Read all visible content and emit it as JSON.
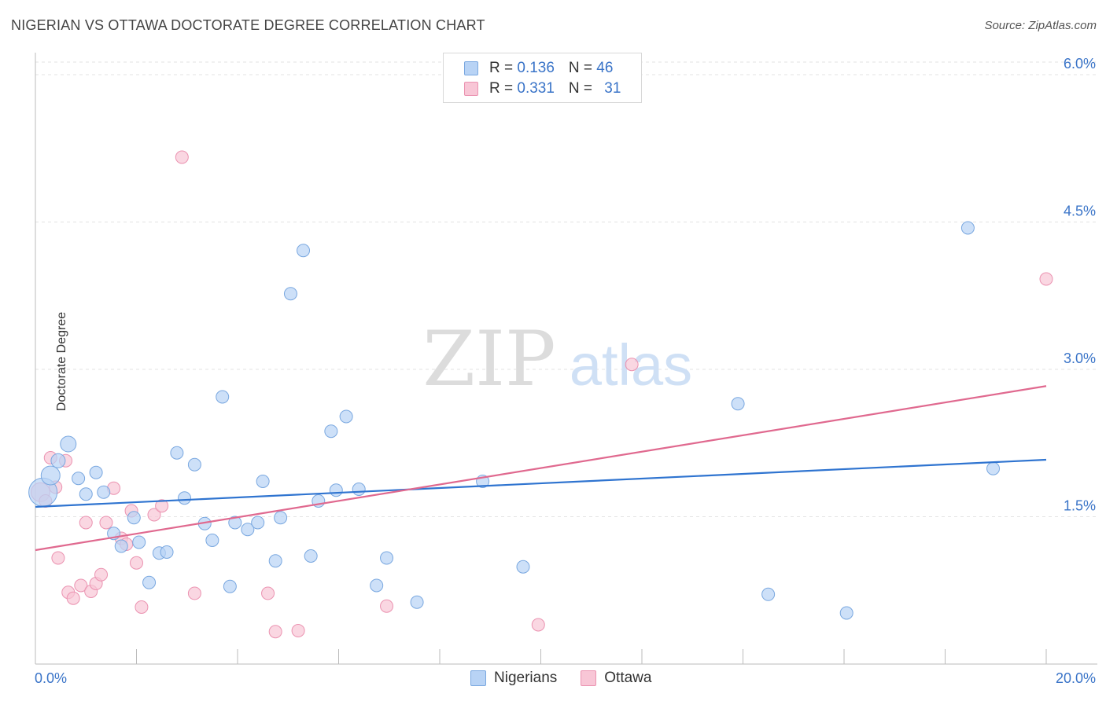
{
  "title": "NIGERIAN VS OTTAWA DOCTORATE DEGREE CORRELATION CHART",
  "source": "Source: ZipAtlas.com",
  "watermark": {
    "zip": "ZIP",
    "atlas": "atlas"
  },
  "legend": {
    "nigerians": {
      "r_label": "R = ",
      "r": "0.136",
      "n_label": "N = ",
      "n": "46"
    },
    "ottawa": {
      "r_label": "R = ",
      "r": "0.331",
      "n_label": "N = ",
      "n": "31"
    }
  },
  "colors": {
    "nigerians_fill": "#b8d3f5",
    "nigerians_edge": "#7aa8e0",
    "nigerians_line": "#2f74d0",
    "ottawa_fill": "#f8c6d6",
    "ottawa_edge": "#eb93b1",
    "ottawa_line": "#e0698f",
    "tick_label": "#3a74c8"
  },
  "chart_data": {
    "type": "scatter",
    "title": "NIGERIAN VS OTTAWA DOCTORATE DEGREE CORRELATION CHART",
    "xlabel": "",
    "ylabel": "Doctorate Degree",
    "xlim": [
      0,
      20
    ],
    "ylim": [
      0,
      6.2
    ],
    "x_tick_labels": [
      "0.0%",
      "20.0%"
    ],
    "y_ticks": [
      1.5,
      3.0,
      4.5,
      6.0
    ],
    "y_tick_labels": [
      "1.5%",
      "3.0%",
      "4.5%",
      "6.0%"
    ],
    "grid": true,
    "legend_position": "top-center",
    "series": [
      {
        "name": "Nigerians",
        "r": 0.136,
        "n": 46,
        "trend": [
          [
            0,
            1.6
          ],
          [
            20,
            2.08
          ]
        ],
        "points": [
          [
            0.15,
            1.75,
            18
          ],
          [
            0.3,
            1.92,
            12
          ],
          [
            0.45,
            2.07,
            9
          ],
          [
            0.65,
            2.24,
            10
          ],
          [
            0.85,
            1.89,
            8
          ],
          [
            1.0,
            1.73,
            8
          ],
          [
            1.2,
            1.95,
            8
          ],
          [
            1.35,
            1.75,
            8
          ],
          [
            1.55,
            1.33,
            8
          ],
          [
            1.7,
            1.2,
            8
          ],
          [
            1.95,
            1.49,
            8
          ],
          [
            2.05,
            1.24,
            8
          ],
          [
            2.25,
            0.83,
            8
          ],
          [
            2.45,
            1.13,
            8
          ],
          [
            2.6,
            1.14,
            8
          ],
          [
            2.8,
            2.15,
            8
          ],
          [
            2.95,
            1.69,
            8
          ],
          [
            3.15,
            2.03,
            8
          ],
          [
            3.35,
            1.43,
            8
          ],
          [
            3.5,
            1.26,
            8
          ],
          [
            3.7,
            2.72,
            8
          ],
          [
            3.85,
            0.79,
            8
          ],
          [
            3.95,
            1.44,
            8
          ],
          [
            4.2,
            1.37,
            8
          ],
          [
            4.4,
            1.44,
            8
          ],
          [
            4.5,
            1.86,
            8
          ],
          [
            4.75,
            1.05,
            8
          ],
          [
            4.85,
            1.49,
            8
          ],
          [
            5.05,
            3.77,
            8
          ],
          [
            5.3,
            4.21,
            8
          ],
          [
            5.45,
            1.1,
            8
          ],
          [
            5.6,
            1.66,
            8
          ],
          [
            5.85,
            2.37,
            8
          ],
          [
            5.95,
            1.77,
            8
          ],
          [
            6.15,
            2.52,
            8
          ],
          [
            6.4,
            1.78,
            8
          ],
          [
            6.75,
            0.8,
            8
          ],
          [
            6.95,
            1.08,
            8
          ],
          [
            7.55,
            0.63,
            8
          ],
          [
            8.85,
            1.86,
            8
          ],
          [
            9.65,
            0.99,
            8
          ],
          [
            13.9,
            2.65,
            8
          ],
          [
            14.5,
            0.71,
            8
          ],
          [
            16.05,
            0.52,
            8
          ],
          [
            18.45,
            4.44,
            8
          ],
          [
            18.95,
            1.99,
            8
          ]
        ]
      },
      {
        "name": "Ottawa",
        "r": 0.331,
        "n": 31,
        "trend": [
          [
            0,
            1.16
          ],
          [
            20,
            2.83
          ]
        ],
        "points": [
          [
            0.1,
            1.75,
            12
          ],
          [
            0.2,
            1.66,
            8
          ],
          [
            0.3,
            2.1,
            8
          ],
          [
            0.4,
            1.8,
            8
          ],
          [
            0.45,
            1.08,
            8
          ],
          [
            0.6,
            2.07,
            8
          ],
          [
            0.65,
            0.73,
            8
          ],
          [
            0.75,
            0.67,
            8
          ],
          [
            0.9,
            0.8,
            8
          ],
          [
            1.0,
            1.44,
            8
          ],
          [
            1.1,
            0.74,
            8
          ],
          [
            1.2,
            0.82,
            8
          ],
          [
            1.3,
            0.91,
            8
          ],
          [
            1.4,
            1.44,
            8
          ],
          [
            1.55,
            1.79,
            8
          ],
          [
            1.7,
            1.28,
            8
          ],
          [
            1.8,
            1.22,
            8
          ],
          [
            1.9,
            1.56,
            8
          ],
          [
            2.0,
            1.03,
            8
          ],
          [
            2.1,
            0.58,
            8
          ],
          [
            2.35,
            1.52,
            8
          ],
          [
            2.5,
            1.61,
            8
          ],
          [
            2.9,
            5.16,
            8
          ],
          [
            3.15,
            0.72,
            8
          ],
          [
            4.6,
            0.72,
            8
          ],
          [
            4.75,
            0.33,
            8
          ],
          [
            5.2,
            0.34,
            8
          ],
          [
            6.95,
            0.59,
            8
          ],
          [
            9.95,
            0.4,
            8
          ],
          [
            11.8,
            3.05,
            8
          ],
          [
            20.0,
            3.92,
            8
          ]
        ]
      }
    ]
  }
}
